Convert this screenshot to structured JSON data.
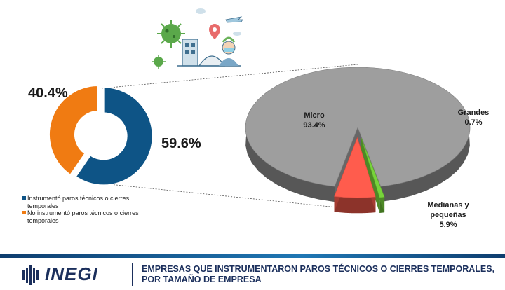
{
  "chart_data": [
    {
      "type": "pie",
      "variant": "donut",
      "slices": [
        {
          "label": "Instrumentó paros técnicos o cierres temporales",
          "value": 59.6,
          "display": "59.6%",
          "color": "#0e5486"
        },
        {
          "label": "No instrumentó paros técnicos o cierres temporales",
          "value": 40.4,
          "display": "40.4%",
          "color": "#f07b12"
        }
      ],
      "legend_position": "bottom-left"
    },
    {
      "type": "pie",
      "variant": "3d-exploded",
      "slices": [
        {
          "label": "Micro",
          "value": 93.4,
          "display": "93.4%",
          "color": "#9e9e9e"
        },
        {
          "label": "Grandes",
          "value": 0.7,
          "display": "0.7%",
          "color": "#77d33a"
        },
        {
          "label": "Medianas y pequeñas",
          "value": 5.9,
          "display": "5.9%",
          "color": "#ff5c4d"
        }
      ]
    }
  ],
  "legend": [
    {
      "text": "Instrumentó paros técnicos o cierres temporales",
      "color": "#0e5486"
    },
    {
      "text": "No instrumentó paros técnicos o cierres temporales",
      "color": "#f07b12"
    }
  ],
  "footer": {
    "logo": "INEGI",
    "title": "EMPRESAS QUE INSTRUMENTARON PAROS TÉCNICOS O CIERRES TEMPORALES, POR TAMAÑO DE EMPRESA"
  },
  "icons": [
    "virus-icon",
    "city-icon",
    "location-pin-icon",
    "person-mask-icon",
    "airplane-icon"
  ]
}
